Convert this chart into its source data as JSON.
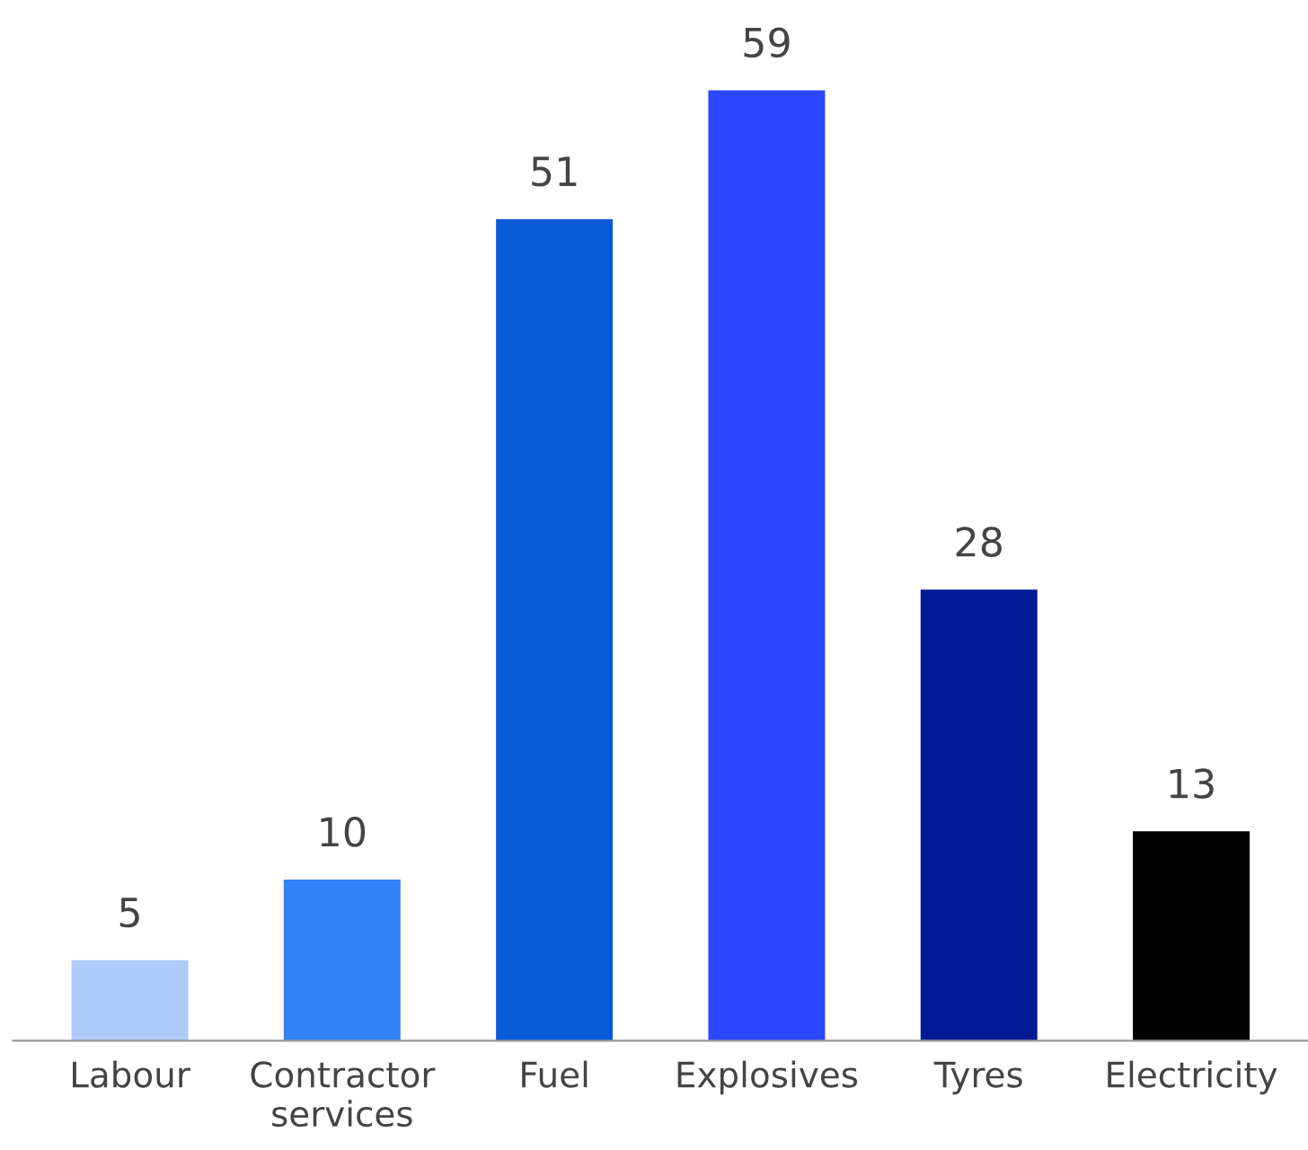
{
  "chart_data": {
    "type": "bar",
    "categories": [
      "Labour",
      "Contractor\nservices",
      "Fuel",
      "Explosives",
      "Tyres",
      "Electricity"
    ],
    "values": [
      5,
      10,
      51,
      59,
      28,
      13
    ],
    "colors": [
      "#aecbfa",
      "#3481f8",
      "#0a5ad8",
      "#2b48fd",
      "#021b94",
      "#000000"
    ],
    "data_labels": true,
    "grid": false,
    "legend": false
  }
}
